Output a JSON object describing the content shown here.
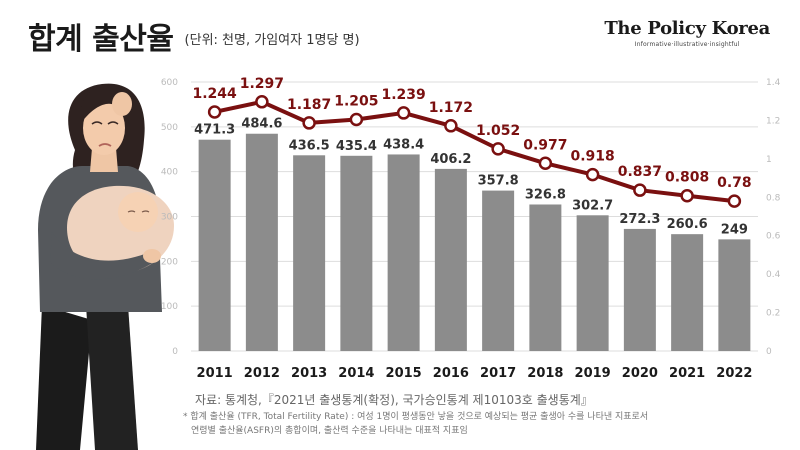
{
  "header": {
    "title": "합계 출산율",
    "unit": "(단위: 천명, 가임여자 1명당 명)"
  },
  "brand": {
    "name": "The Policy Korea",
    "tagline": "Informative·illustrative·insightful"
  },
  "source": "자료: 통계청,『2021년 출생통계(확정), 국가승인통계 제10103호 출생통계』",
  "footnote": {
    "line1": "* 합계 출산율 (TFR, Total Fertility Rate) : 여성 1명이 평생동안 낳을 것으로 예상되는 평균 출생아 수를 나타낸 지표로서",
    "line2": "연령별 출산율(ASFR)의 총합이며, 출산력 수준을 나타내는 대표적 지표임"
  },
  "colors": {
    "bar": "#8c8c8c",
    "line": "#7a1010",
    "value_label": "#7a1010",
    "axis_text": "#bbbbbb",
    "grid": "#dddddd"
  },
  "illustration": "mother-holding-baby",
  "chart_data": {
    "type": "bar+line",
    "categories": [
      "2011",
      "2012",
      "2013",
      "2014",
      "2015",
      "2016",
      "2017",
      "2018",
      "2019",
      "2020",
      "2021",
      "2022"
    ],
    "series": [
      {
        "type": "bar",
        "axis": "left",
        "values": [
          471.3,
          484.6,
          436.5,
          435.4,
          438.4,
          406.2,
          357.8,
          326.8,
          302.7,
          272.3,
          260.6,
          249
        ],
        "labels": [
          "471.3",
          "484.6",
          "436.5",
          "435.4",
          "438.4",
          "406.2",
          "357.8",
          "326.8",
          "302.7",
          "272.3",
          "260.6",
          "249"
        ]
      },
      {
        "type": "line",
        "axis": "right",
        "values": [
          1.244,
          1.297,
          1.187,
          1.205,
          1.239,
          1.172,
          1.052,
          0.977,
          0.918,
          0.837,
          0.808,
          0.78
        ],
        "labels": [
          "1.244",
          "1.297",
          "1.187",
          "1.205",
          "1.239",
          "1.172",
          "1.052",
          "0.977",
          "0.918",
          "0.837",
          "0.808",
          "0.78"
        ]
      }
    ],
    "y_left": {
      "min": 0,
      "max": 600,
      "ticks": [
        "0",
        "100",
        "200",
        "300",
        "400",
        "500",
        "600"
      ]
    },
    "y_right": {
      "min": 0,
      "max": 1.4,
      "ticks": [
        "0",
        "0.2",
        "0.4",
        "0.6",
        "0.8",
        "1",
        "1.2",
        "1.4"
      ]
    },
    "grid": true,
    "legend": "none"
  }
}
